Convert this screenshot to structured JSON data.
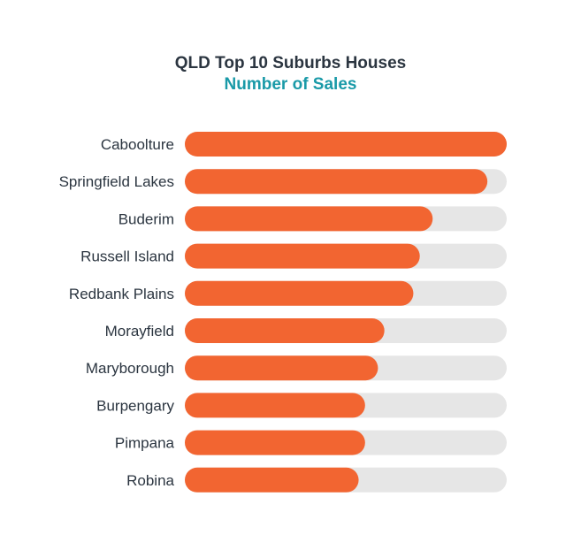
{
  "chart_data": {
    "type": "bar",
    "orientation": "horizontal",
    "title": "QLD Top 10 Suburbs Houses",
    "subtitle": "Number of Sales",
    "categories": [
      "Caboolture",
      "Springfield Lakes",
      "Buderim",
      "Russell Island",
      "Redbank Plains",
      "Morayfield",
      "Maryborough",
      "Burpengary",
      "Pimpana",
      "Robina"
    ],
    "values": [
      100,
      94,
      77,
      73,
      71,
      62,
      60,
      56,
      56,
      54
    ],
    "value_unit": "percent of maximum",
    "xlim": [
      0,
      100
    ],
    "grid": false,
    "colors": {
      "bar": "#f26531",
      "track": "#e6e6e6",
      "title": "#2b3540",
      "subtitle": "#1a9aa8",
      "label": "#2b3540"
    }
  }
}
